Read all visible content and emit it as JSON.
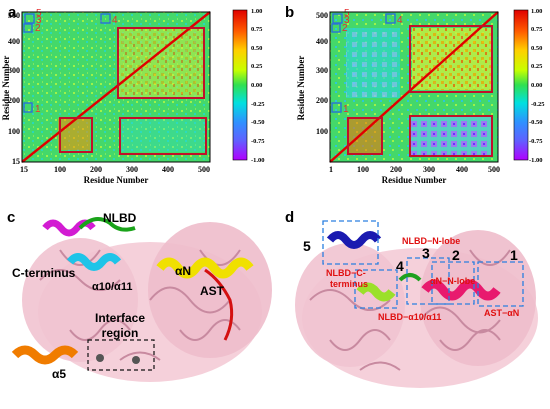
{
  "figure": {
    "panel_a": {
      "letter": "a",
      "xlabel": "Residue Number",
      "ylabel": "Residue Number",
      "x_ticks": [
        "15",
        "100",
        "200",
        "300",
        "400",
        "500"
      ],
      "y_ticks": [
        "15",
        "100",
        "200",
        "300",
        "400",
        "500"
      ],
      "regions": [
        "1",
        "2",
        "3",
        "4",
        "5"
      ],
      "colorbar": [
        "1.00",
        "0.75",
        "0.50",
        "0.25",
        "0.00",
        "-0.25",
        "-0.50",
        "-0.75",
        "-1.00"
      ]
    },
    "panel_b": {
      "letter": "b",
      "xlabel": "Residue Number",
      "ylabel": "Residue Number",
      "x_ticks": [
        "1",
        "100",
        "200",
        "300",
        "400",
        "500"
      ],
      "y_ticks": [
        "100",
        "200",
        "300",
        "400",
        "500"
      ],
      "regions": [
        "1",
        "2",
        "3",
        "4",
        "5"
      ],
      "colorbar": [
        "1.00",
        "0.75",
        "0.50",
        "0.25",
        "0.00",
        "-0.25",
        "-0.50",
        "-0.75",
        "-1.00"
      ]
    },
    "panel_c": {
      "letter": "c",
      "labels": {
        "nlbd": "NLBD",
        "cterm": "C-terminus",
        "a10": "α10/α11",
        "an": "αN",
        "ast": "AST",
        "interface1": "Interface",
        "interface2": "region",
        "a5": "α5"
      }
    },
    "panel_d": {
      "letter": "d",
      "labels": {
        "n5": "5",
        "n4": "4",
        "n3": "3",
        "n2": "2",
        "n1": "1",
        "nlbd_n": "NLBD−N-lobe",
        "nlbd_c1": "NLBD−C-",
        "nlbd_c2": "terminus",
        "an_n": "αN−N-lobe",
        "nlbd_a10": "NLBD−α10/α11",
        "ast_an": "AST−αN"
      }
    }
  }
}
